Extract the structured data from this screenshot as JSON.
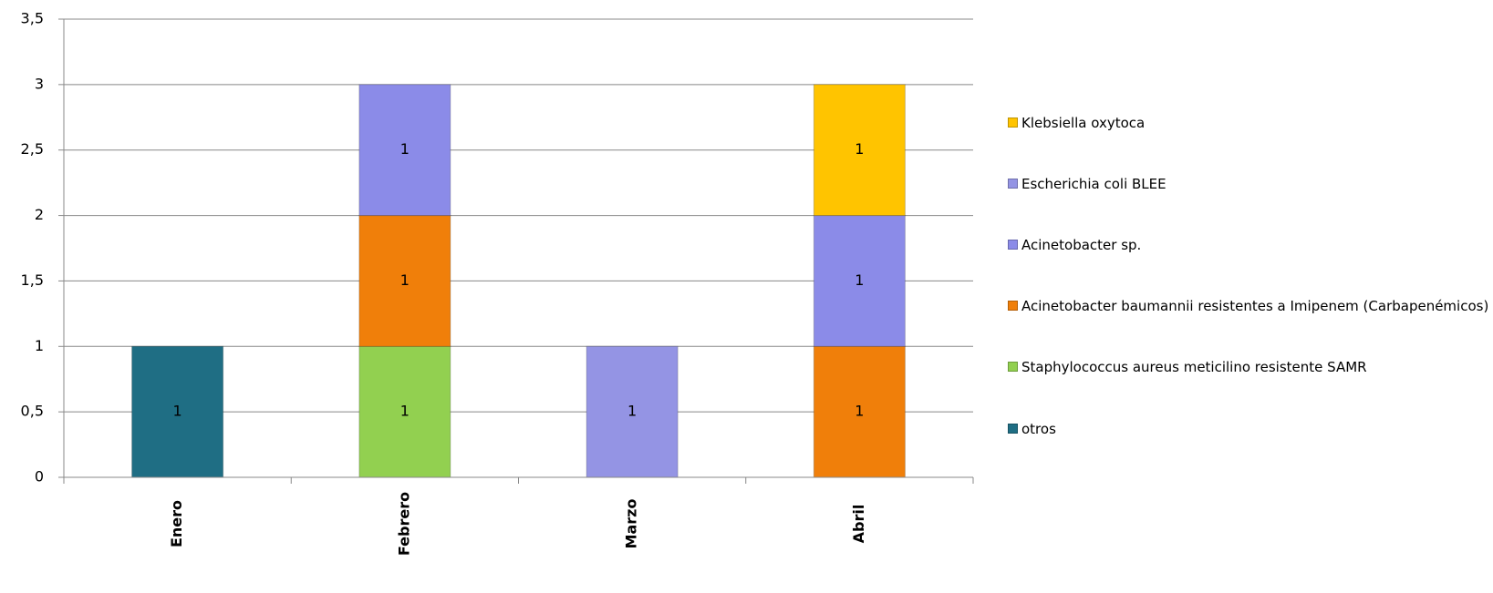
{
  "chart_data": {
    "type": "bar",
    "stacked": true,
    "categories": [
      "Enero",
      "Febrero",
      "Marzo",
      "Abril"
    ],
    "series": [
      {
        "name": "otros",
        "color": "#1f6e84",
        "values": [
          1,
          null,
          null,
          null
        ]
      },
      {
        "name": "Staphylococcus aureus meticilino resistente SAMR",
        "color": "#92d050",
        "values": [
          null,
          1,
          null,
          null
        ]
      },
      {
        "name": "Acinetobacter baumannii resistentes a Imipenem (Carbapenémicos)",
        "color": "#f07f0a",
        "values": [
          null,
          1,
          null,
          1
        ]
      },
      {
        "name": "Acinetobacter sp.",
        "color": "#8b8be8",
        "values": [
          null,
          1,
          null,
          1
        ]
      },
      {
        "name": "Escherichia coli BLEE",
        "color": "#9494e4",
        "values": [
          null,
          null,
          1,
          null
        ]
      },
      {
        "name": "Klebsiella oxytoca",
        "color": "#ffc400",
        "values": [
          null,
          null,
          null,
          1
        ]
      }
    ],
    "ylim": [
      0,
      3.5
    ],
    "yticks": [
      0,
      {
        "value": 0.5,
        "label": "0,5"
      },
      1,
      {
        "value": 1.5,
        "label": "1,5"
      },
      2,
      {
        "value": 2.5,
        "label": "2,5"
      },
      3,
      {
        "value": 3.5,
        "label": "3,5"
      }
    ],
    "grid": true
  }
}
